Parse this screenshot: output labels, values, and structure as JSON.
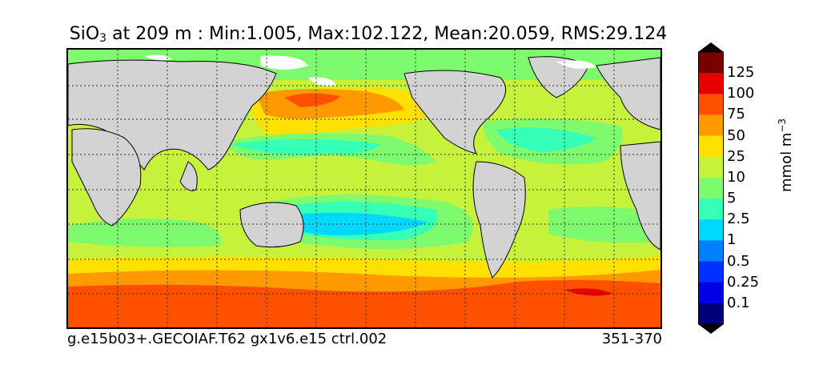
{
  "title": {
    "variable": "SiO",
    "subscript": "3",
    "rest": " at 209 m : Min:1.005, Max:102.122, Mean:20.059, RMS:29.124"
  },
  "caption": {
    "left": "g.e15b03+.GECOIAF.T62 gx1v6.e15 ctrl.002",
    "right": "351-370"
  },
  "colorbar": {
    "units_base": "mmol m",
    "units_exp": "−3",
    "tick_labels": [
      "125",
      "100",
      "75",
      "50",
      "25",
      "10",
      "5",
      "2.5",
      "1",
      "0.5",
      "0.25",
      "0.1"
    ],
    "colors": [
      "#7a0000",
      "#e60000",
      "#ff5000",
      "#ff9900",
      "#ffe000",
      "#c7f23c",
      "#7dfa6e",
      "#36ffb6",
      "#00d8ff",
      "#0080ff",
      "#0030ff",
      "#0000e6",
      "#00007a"
    ]
  }
}
